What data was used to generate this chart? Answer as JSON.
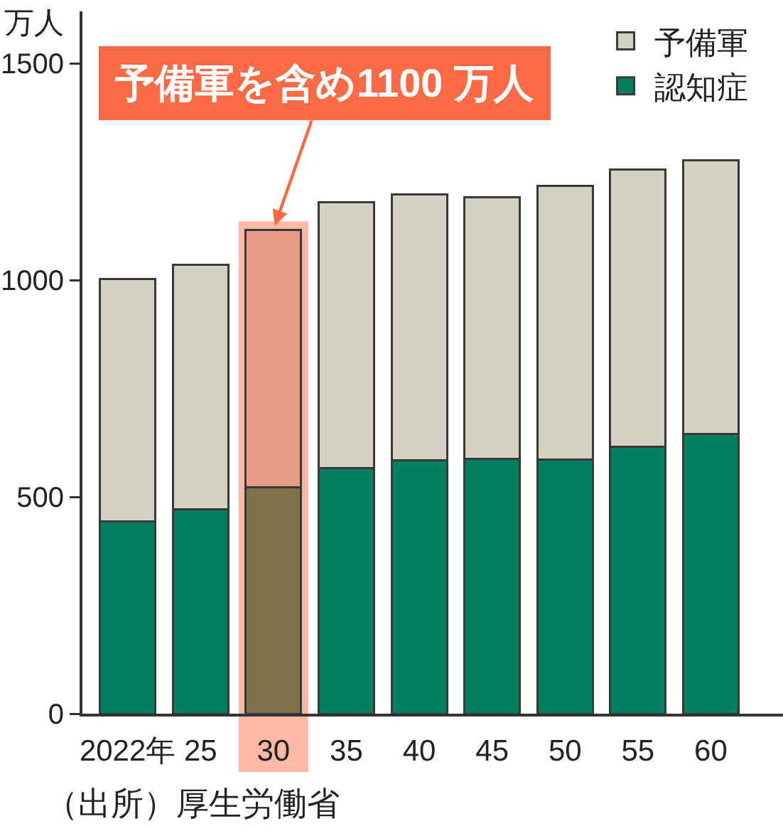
{
  "chart_data": {
    "type": "bar",
    "stacked": true,
    "ylabel": "万人",
    "categories": [
      "2022年",
      "25",
      "30",
      "35",
      "40",
      "45",
      "50",
      "55",
      "60"
    ],
    "series": [
      {
        "name": "認知症",
        "colors": [
          "#00805e",
          "#00805e",
          "#7f714c",
          "#00805e",
          "#00805e",
          "#00805e",
          "#00805e",
          "#00805e",
          "#00805e"
        ],
        "values": [
          443,
          472,
          523,
          566,
          584,
          588,
          587,
          616,
          645
        ]
      },
      {
        "name": "予備軍",
        "colors": [
          "#d5d1c5",
          "#d5d1c5",
          "#e99c85",
          "#d5d1c5",
          "#d5d1c5",
          "#d5d1c5",
          "#d5d1c5",
          "#d5d1c5",
          "#d5d1c5"
        ],
        "values": [
          559,
          564,
          593,
          613,
          613,
          604,
          631,
          640,
          632
        ]
      }
    ],
    "ylim": [
      0,
      1620
    ],
    "yticks": [
      0,
      500,
      1000,
      1500
    ],
    "legend": "top right",
    "bands": [
      {
        "axis": "x",
        "from": "30",
        "to": "30",
        "color": "#fdb8a3"
      }
    ],
    "annotations": [
      {
        "text": "予備軍を含め1100 万人",
        "x": "30",
        "y": 1116
      },
      "（出所）厚生労働省"
    ]
  }
}
